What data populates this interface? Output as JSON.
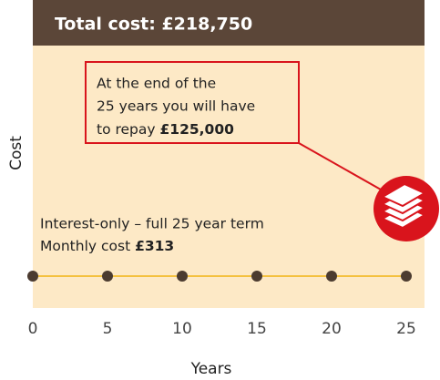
{
  "chart_data": {
    "type": "line",
    "title": "Total cost: £218,750",
    "annotation": {
      "lines": [
        "At the end of the",
        "25 years you will have",
        "to repay "
      ],
      "amount": "£125,000"
    },
    "series_label": {
      "lines": [
        "Interest-only – full 25 year term",
        "Monthly cost "
      ],
      "amount": "£313"
    },
    "x": [
      0,
      5,
      10,
      15,
      20,
      25
    ],
    "xlim": [
      0,
      25
    ],
    "xticks": [
      0,
      5,
      10,
      15,
      20,
      25
    ],
    "xlabel": "Years",
    "ylabel": "Cost",
    "line_color": "#f4c13f",
    "marker_color": "#4b3b30"
  }
}
